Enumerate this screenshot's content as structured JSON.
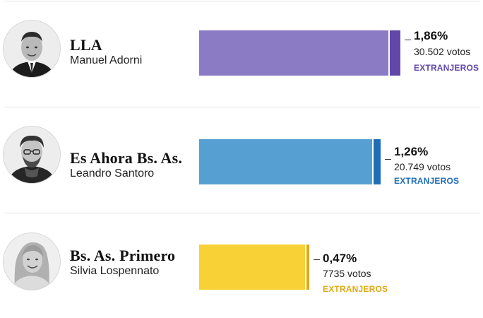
{
  "colors": {
    "lla_main": "#8b7ac4",
    "lla_ext": "#6247aa",
    "esahora_main": "#569fd3",
    "esahora_ext": "#1f6db6",
    "primero_main": "#f7d136",
    "primero_ext": "#e2a812"
  },
  "chart_data": {
    "type": "bar",
    "orientation": "horizontal",
    "categories": [
      "LLA",
      "Es Ahora Bs. As.",
      "Bs. As. Primero"
    ],
    "series": [
      {
        "values": [
          100,
          91.6,
          55.9
        ]
      },
      {
        "name": "EXTRANJEROS",
        "values": [
          1.86,
          1.26,
          0.47
        ],
        "votes": [
          30502,
          20749,
          7735
        ]
      }
    ],
    "rows": [
      {
        "party": "LLA",
        "candidate": "Manuel Adorni",
        "percent_label": "1,86%",
        "votes_label": "30.502 votos",
        "extranjeros_label": "EXTRANJEROS",
        "avatar": "candidate-photo-adorni"
      },
      {
        "party": "Es Ahora Bs. As.",
        "candidate": "Leandro Santoro",
        "percent_label": "1,26%",
        "votes_label": "20.749 votos",
        "extranjeros_label": "EXTRANJEROS",
        "avatar": "candidate-photo-santoro"
      },
      {
        "party": "Bs. As. Primero",
        "candidate": "Silvia Lospennato",
        "percent_label": "0,47%",
        "votes_label": "7735 votos",
        "extranjeros_label": "EXTRANJEROS",
        "avatar": "candidate-photo-lospennato"
      }
    ]
  }
}
